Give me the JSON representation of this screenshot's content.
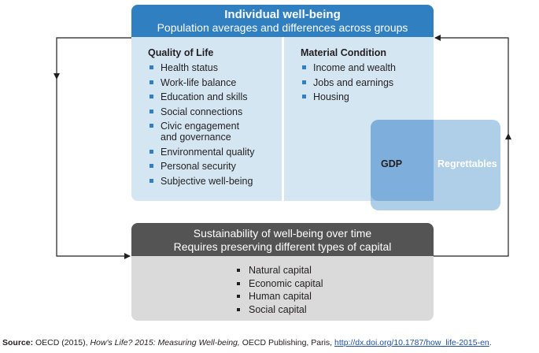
{
  "individual": {
    "title": "Individual well-being",
    "subtitle": "Population averages and differences across groups",
    "quality_of_life": {
      "title": "Quality of Life",
      "items": [
        [
          "Health status"
        ],
        [
          "Work-life balance"
        ],
        [
          "Education and skills"
        ],
        [
          "Social connections"
        ],
        [
          "Civic engagement",
          "and governance"
        ],
        [
          "Environmental quality"
        ],
        [
          "Personal security"
        ],
        [
          "Subjective well-being"
        ]
      ]
    },
    "material_condition": {
      "title": "Material Condition",
      "items": [
        "Income and wealth",
        "Jobs and earnings",
        "Housing"
      ]
    },
    "gdp_label": "GDP",
    "regrettables_label": "Regrettables"
  },
  "sustainability": {
    "title": "Sustainability of well-being over time",
    "subtitle": "Requires preserving different types of capital",
    "items": [
      "Natural capital",
      "Economic capital",
      "Human capital",
      "Social capital"
    ]
  },
  "source": {
    "label": "Source:",
    "prefix": "OECD (2015),",
    "title": "How's Life? 2015: Measuring Well-being,",
    "publisher": "OECD Publishing, Paris,",
    "url": "http://dx.doi.org/10.1787/how_life-2015-en",
    "end": "."
  },
  "colors": {
    "blue": "#2f7fc1",
    "light_blue": "#d5e6f3",
    "dark_grey": "#545454",
    "light_grey": "#dadada"
  }
}
